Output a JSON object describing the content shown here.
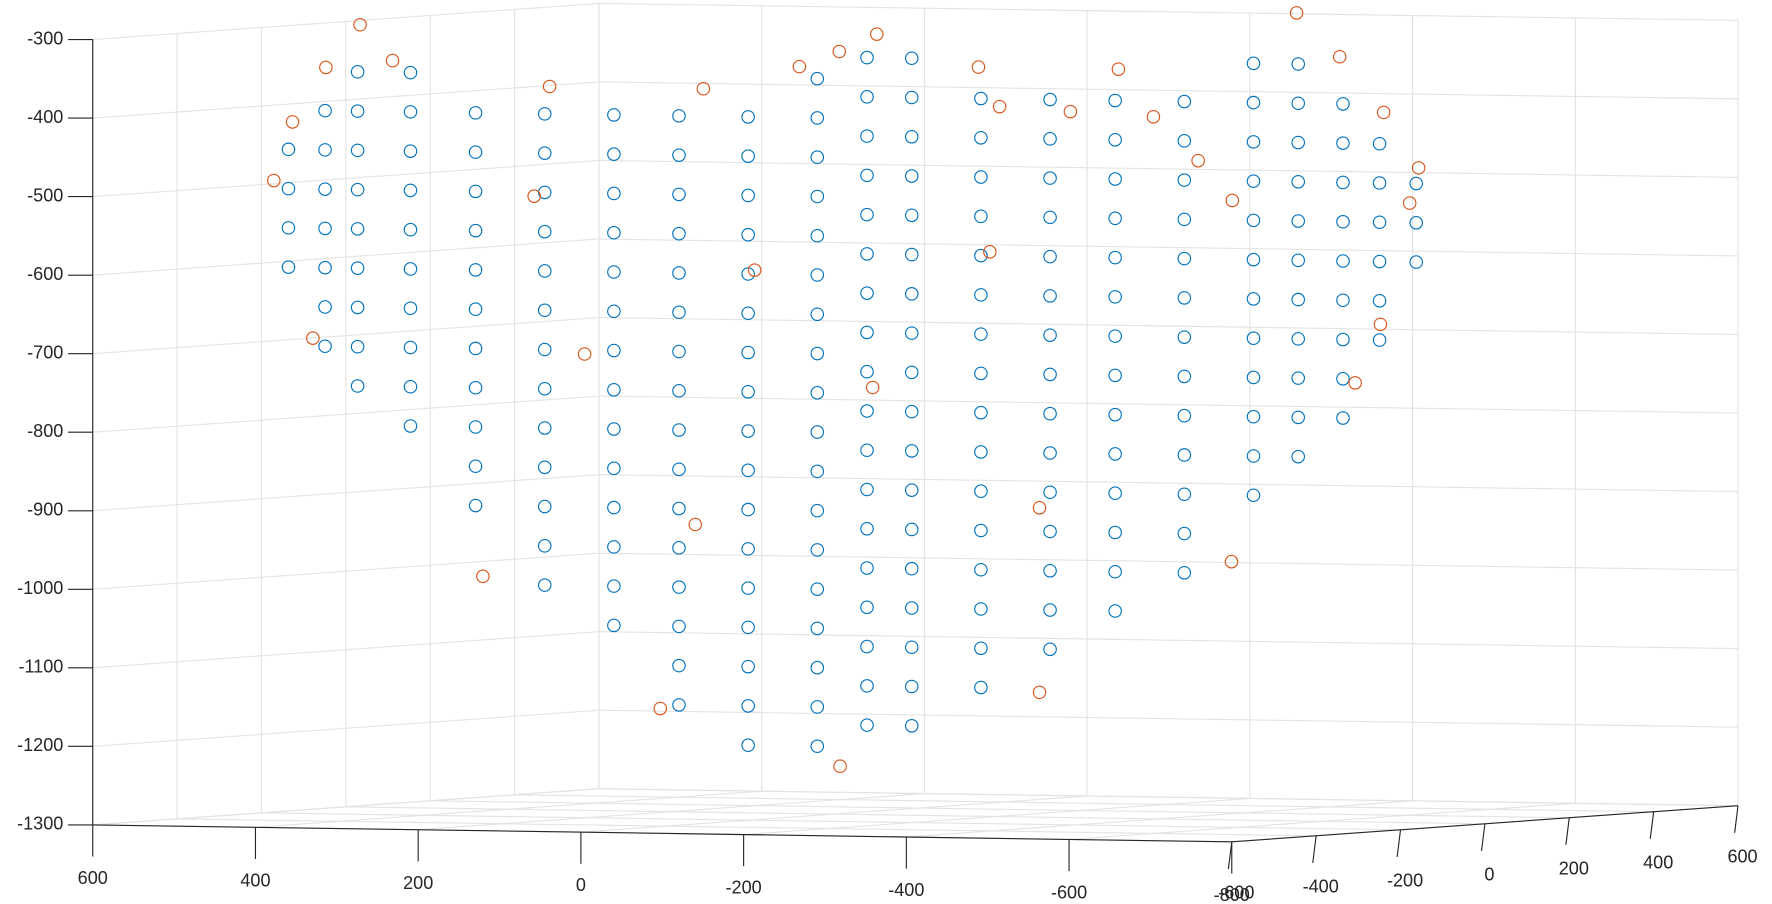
{
  "chart_data": {
    "type": "scatter3",
    "xlim": [
      600,
      -800
    ],
    "ylim": [
      -600,
      600
    ],
    "zlim": [
      -1300,
      -300
    ],
    "xticks": [
      600,
      400,
      200,
      0,
      -200,
      -400,
      -600,
      -800
    ],
    "yticks": [
      -600,
      -400,
      -200,
      0,
      200,
      400,
      600
    ],
    "zticks": [
      -300,
      -400,
      -500,
      -600,
      -700,
      -800,
      -900,
      -1000,
      -1100,
      -1200,
      -1300
    ],
    "grid": true,
    "series": [
      {
        "color": "#0072bd",
        "x": [
          515,
          515,
          515,
          515,
          470,
          470,
          470,
          470,
          470,
          470,
          470,
          430,
          430,
          430,
          430,
          430,
          430,
          430,
          430,
          430,
          365,
          365,
          365,
          365,
          365,
          365,
          365,
          365,
          365,
          365,
          285,
          285,
          285,
          285,
          285,
          285,
          285,
          285,
          285,
          285,
          285,
          200,
          200,
          200,
          200,
          200,
          200,
          200,
          200,
          200,
          200,
          200,
          200,
          200,
          115,
          115,
          115,
          115,
          115,
          115,
          115,
          115,
          115,
          115,
          115,
          115,
          115,
          115,
          35,
          35,
          35,
          35,
          35,
          35,
          35,
          35,
          35,
          35,
          35,
          35,
          35,
          35,
          35,
          35,
          -50,
          -50,
          -50,
          -50,
          -50,
          -50,
          -50,
          -50,
          -50,
          -50,
          -50,
          -50,
          -50,
          -50,
          -50,
          -50,
          -50,
          -135,
          -135,
          -135,
          -135,
          -135,
          -135,
          -135,
          -135,
          -135,
          -135,
          -135,
          -135,
          -135,
          -135,
          -135,
          -135,
          -135,
          -135,
          115,
          115,
          115,
          115,
          115,
          115,
          115,
          115,
          115,
          115,
          115,
          115,
          115,
          115,
          115,
          115,
          115,
          115,
          60,
          60,
          60,
          60,
          60,
          60,
          60,
          60,
          60,
          60,
          60,
          60,
          60,
          60,
          60,
          60,
          60,
          60,
          -25,
          -25,
          -25,
          -25,
          -25,
          -25,
          -25,
          -25,
          -25,
          -25,
          -25,
          -25,
          -25,
          -25,
          -25,
          -25,
          -110,
          -110,
          -110,
          -110,
          -110,
          -110,
          -110,
          -110,
          -110,
          -110,
          -110,
          -110,
          -110,
          -110,
          -110,
          -190,
          -190,
          -190,
          -190,
          -190,
          -190,
          -190,
          -190,
          -190,
          -190,
          -190,
          -190,
          -190,
          -190,
          -275,
          -275,
          -275,
          -275,
          -275,
          -275,
          -275,
          -275,
          -275,
          -275,
          -275,
          -275,
          -275,
          -360,
          -360,
          -360,
          -360,
          -360,
          -360,
          -360,
          -360,
          -360,
          -360,
          -360,
          -360,
          -415,
          -415,
          -415,
          -415,
          -415,
          -415,
          -415,
          -415,
          -415,
          -415,
          -415,
          -470,
          -470,
          -470,
          -470,
          -470,
          -470,
          -470,
          -470,
          -470,
          -515,
          -515,
          -515,
          -515,
          -515,
          -515,
          -560,
          -560,
          -560
        ],
        "y": [
          -300,
          -300,
          -300,
          -300,
          -300,
          -300,
          -300,
          -300,
          -300,
          -300,
          -300,
          -300,
          -300,
          -300,
          -300,
          -300,
          -300,
          -300,
          -300,
          -300,
          -300,
          -300,
          -300,
          -300,
          -300,
          -300,
          -300,
          -300,
          -300,
          -300,
          -300,
          -300,
          -300,
          -300,
          -300,
          -300,
          -300,
          -300,
          -300,
          -300,
          -300,
          -300,
          -300,
          -300,
          -300,
          -300,
          -300,
          -300,
          -300,
          -300,
          -300,
          -300,
          -300,
          -300,
          -300,
          -300,
          -300,
          -300,
          -300,
          -300,
          -300,
          -300,
          -300,
          -300,
          -300,
          -300,
          -300,
          -300,
          -300,
          -300,
          -300,
          -300,
          -300,
          -300,
          -300,
          -300,
          -300,
          -300,
          -300,
          -300,
          -300,
          -300,
          -300,
          -300,
          -300,
          -300,
          -300,
          -300,
          -300,
          -300,
          -300,
          -300,
          -300,
          -300,
          -300,
          -300,
          -300,
          -300,
          -300,
          -300,
          -300,
          -300,
          -300,
          -300,
          -300,
          -300,
          -300,
          -300,
          -300,
          -300,
          -300,
          -300,
          -300,
          -300,
          -300,
          -300,
          -300,
          -300,
          -300,
          300,
          300,
          300,
          300,
          300,
          300,
          300,
          300,
          300,
          300,
          300,
          300,
          300,
          300,
          300,
          300,
          300,
          300,
          300,
          300,
          300,
          300,
          300,
          300,
          300,
          300,
          300,
          300,
          300,
          300,
          300,
          300,
          300,
          300,
          300,
          300,
          300,
          300,
          300,
          300,
          300,
          300,
          300,
          300,
          300,
          300,
          300,
          300,
          300,
          300,
          300,
          300,
          300,
          300,
          300,
          300,
          300,
          300,
          300,
          300,
          300,
          300,
          300,
          300,
          300,
          300,
          300,
          300,
          300,
          300,
          300,
          300,
          300,
          300,
          300,
          300,
          300,
          300,
          300,
          300,
          300,
          300,
          300,
          300,
          300,
          300,
          300,
          300,
          300,
          300,
          300,
          300,
          300,
          300,
          300,
          300,
          300,
          300,
          300,
          300,
          300,
          300,
          300,
          300,
          300,
          300,
          300,
          300,
          300,
          300,
          300,
          300,
          300,
          300,
          300,
          300,
          300,
          300,
          300,
          300,
          300,
          300,
          300,
          300,
          300,
          300,
          300,
          300,
          300,
          300,
          300,
          300,
          300,
          300,
          300
        ],
        "z": [
          -450,
          -500,
          -550,
          -600,
          -400,
          -450,
          -500,
          -550,
          -600,
          -650,
          -700,
          -350,
          -400,
          -450,
          -500,
          -550,
          -600,
          -650,
          -700,
          -750,
          -350,
          -400,
          -450,
          -500,
          -550,
          -600,
          -650,
          -700,
          -750,
          -800,
          -400,
          -450,
          -500,
          -550,
          -600,
          -650,
          -700,
          -750,
          -800,
          -850,
          -900,
          -400,
          -450,
          -500,
          -550,
          -600,
          -650,
          -700,
          -750,
          -800,
          -850,
          -900,
          -950,
          -1000,
          -400,
          -450,
          -500,
          -550,
          -600,
          -650,
          -700,
          -750,
          -800,
          -850,
          -900,
          -950,
          -1000,
          -1050,
          -400,
          -450,
          -500,
          -550,
          -600,
          -650,
          -700,
          -750,
          -800,
          -850,
          -900,
          -950,
          -1000,
          -1050,
          -1100,
          -1150,
          -400,
          -450,
          -500,
          -550,
          -600,
          -650,
          -700,
          -750,
          -800,
          -850,
          -900,
          -950,
          -1000,
          -1050,
          -1100,
          -1150,
          -1200,
          -350,
          -400,
          -450,
          -500,
          -550,
          -600,
          -650,
          -700,
          -750,
          -800,
          -850,
          -900,
          -950,
          -1000,
          -1050,
          -1100,
          -1150,
          -1200,
          -350,
          -400,
          -450,
          -500,
          -550,
          -600,
          -650,
          -700,
          -750,
          -800,
          -850,
          -900,
          -950,
          -1000,
          -1050,
          -1100,
          -1150,
          -1200,
          -350,
          -400,
          -450,
          -500,
          -550,
          -600,
          -650,
          -700,
          -750,
          -800,
          -850,
          -900,
          -950,
          -1000,
          -1050,
          -1100,
          -1150,
          -1200,
          -400,
          -450,
          -500,
          -550,
          -600,
          -650,
          -700,
          -750,
          -800,
          -850,
          -900,
          -950,
          -1000,
          -1050,
          -1100,
          -1150,
          -400,
          -450,
          -500,
          -550,
          -600,
          -650,
          -700,
          -750,
          -800,
          -850,
          -900,
          -950,
          -1000,
          -1050,
          -1100,
          -400,
          -450,
          -500,
          -550,
          -600,
          -650,
          -700,
          -750,
          -800,
          -850,
          -900,
          -950,
          -1000,
          -1050,
          -400,
          -450,
          -500,
          -550,
          -600,
          -650,
          -700,
          -750,
          -800,
          -850,
          -900,
          -950,
          -1000,
          -350,
          -400,
          -450,
          -500,
          -550,
          -600,
          -650,
          -700,
          -750,
          -800,
          -850,
          -900,
          -350,
          -400,
          -450,
          -500,
          -550,
          -600,
          -650,
          -700,
          -750,
          -800,
          -850,
          -400,
          -450,
          -500,
          -550,
          -600,
          -650,
          -700,
          -750,
          -800,
          -450,
          -500,
          -550,
          -600,
          -650,
          -700,
          -500,
          -550,
          -600
        ]
      },
      {
        "color": "#d95319",
        "x": [
          533,
          510,
          469,
          427,
          485,
          387,
          194,
          213,
          5,
          -58,
          -113,
          -162,
          151,
          15,
          58,
          -163,
          276,
          103,
          -22,
          -36,
          -194,
          -413,
          -466,
          -520,
          -563,
          -552,
          -292,
          -334,
          -516,
          -485,
          -333,
          -97,
          -97,
          108,
          -237,
          -48,
          -135
        ],
        "y": [
          -300,
          -300,
          -300,
          -300,
          -300,
          -300,
          -300,
          -300,
          -300,
          -300,
          -300,
          -300,
          -300,
          -300,
          -300,
          -300,
          -300,
          300,
          300,
          300,
          300,
          300,
          300,
          300,
          300,
          300,
          300,
          300,
          300,
          300,
          300,
          300,
          300,
          300,
          300,
          300,
          300
        ],
        "z": [
          -490,
          -415,
          -345,
          -290,
          -690,
          -335,
          -365,
          -505,
          -365,
          -595,
          -335,
          -315,
          -705,
          -920,
          -1155,
          -1225,
          -990,
          -320,
          -360,
          -595,
          -360,
          -285,
          -340,
          -410,
          -480,
          -525,
          -475,
          -525,
          -680,
          -755,
          -985,
          -1155,
          -920,
          -770,
          -420,
          -410,
          -415
        ]
      }
    ]
  }
}
